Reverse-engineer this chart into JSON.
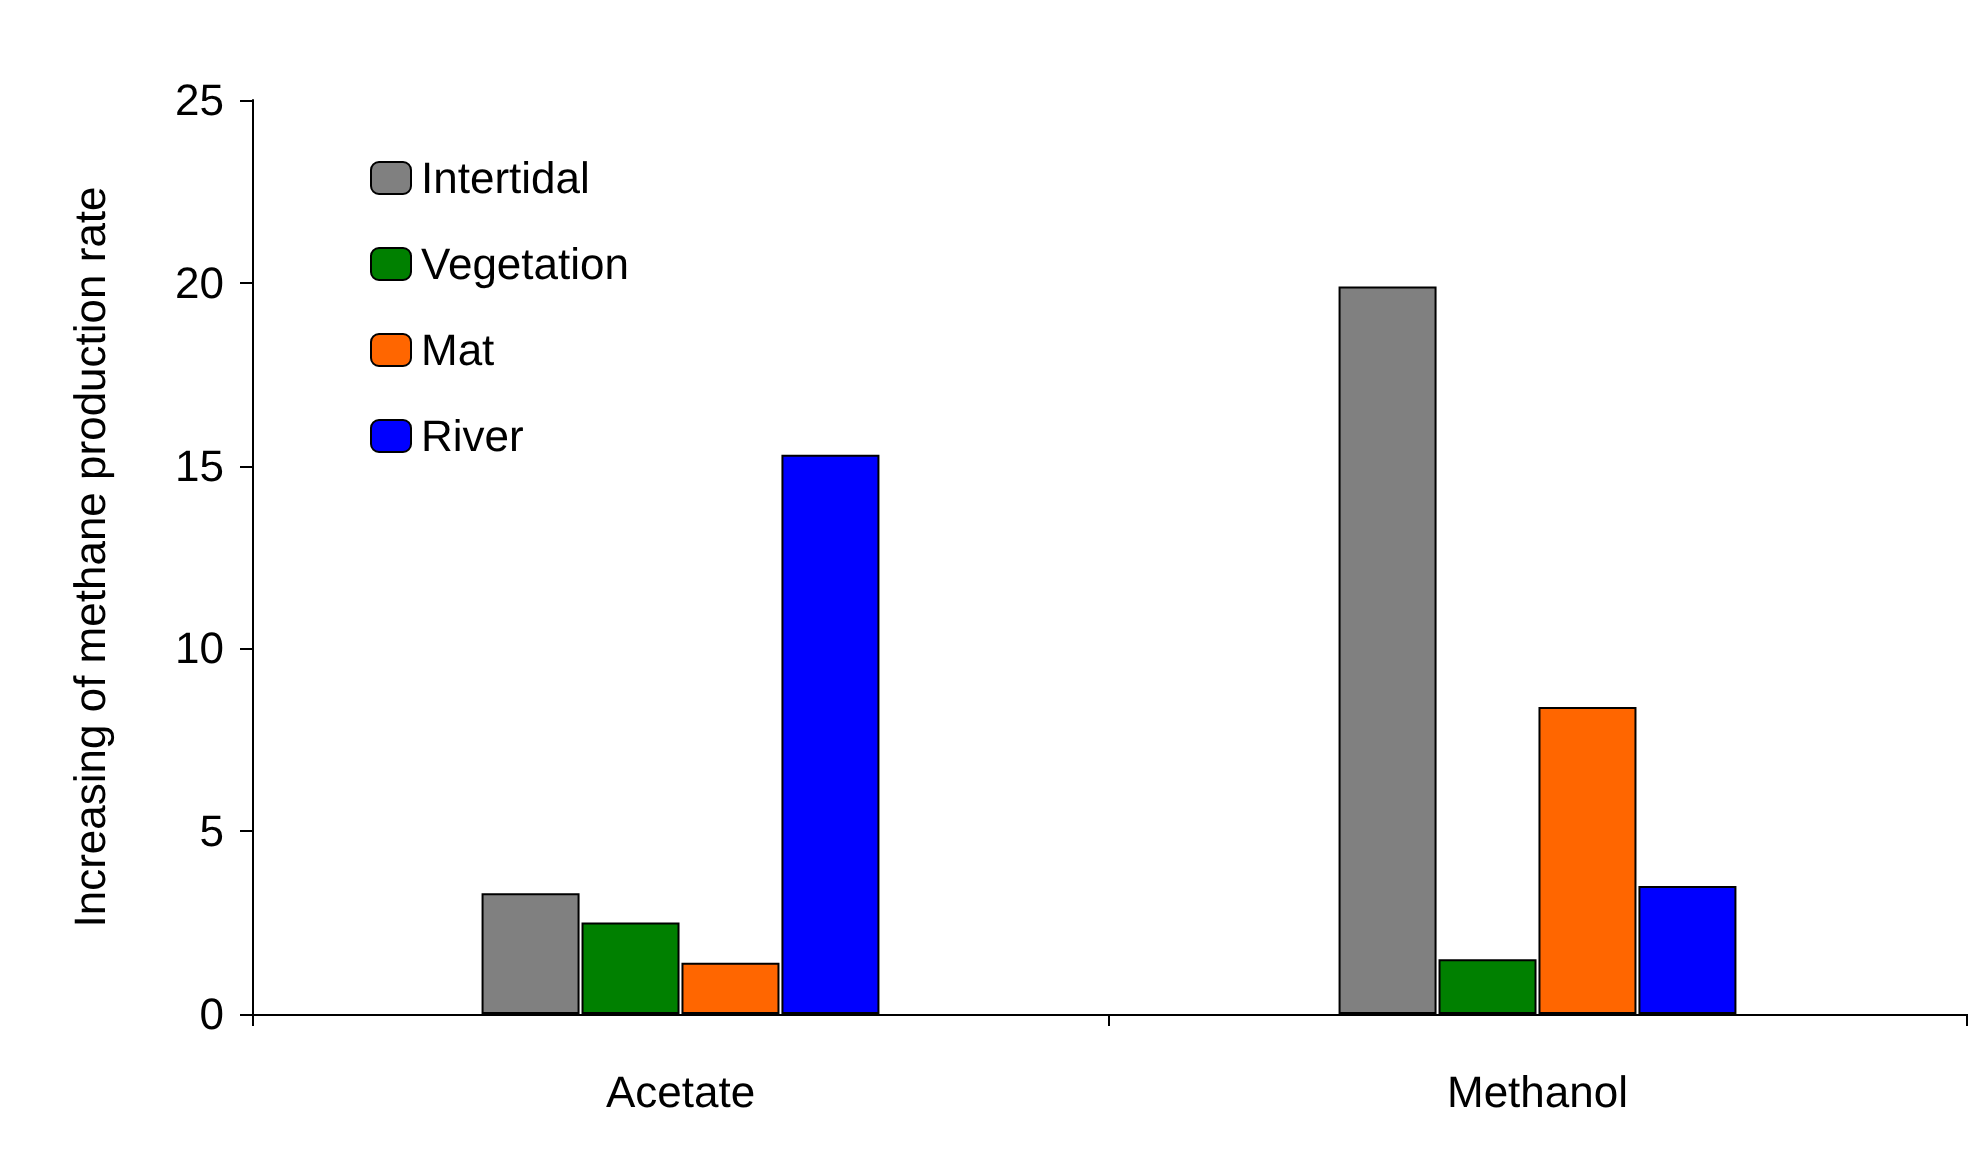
{
  "chart_data": {
    "type": "bar",
    "ylabel": "Increasing of methane production rate",
    "categories": [
      "Acetate",
      "Methanol"
    ],
    "series": [
      {
        "name": "Intertidal",
        "color": "#808080",
        "values": [
          3.3,
          19.9
        ]
      },
      {
        "name": "Vegetation",
        "color": "#008000",
        "values": [
          2.5,
          1.5
        ]
      },
      {
        "name": "Mat",
        "color": "#ff6600",
        "values": [
          1.4,
          8.4
        ]
      },
      {
        "name": "River",
        "color": "#0000ff",
        "values": [
          15.3,
          3.5
        ]
      }
    ],
    "ylim": [
      0,
      25
    ],
    "yticks": [
      0,
      5,
      10,
      15,
      20,
      25
    ],
    "grid": false,
    "legend": "top left"
  }
}
